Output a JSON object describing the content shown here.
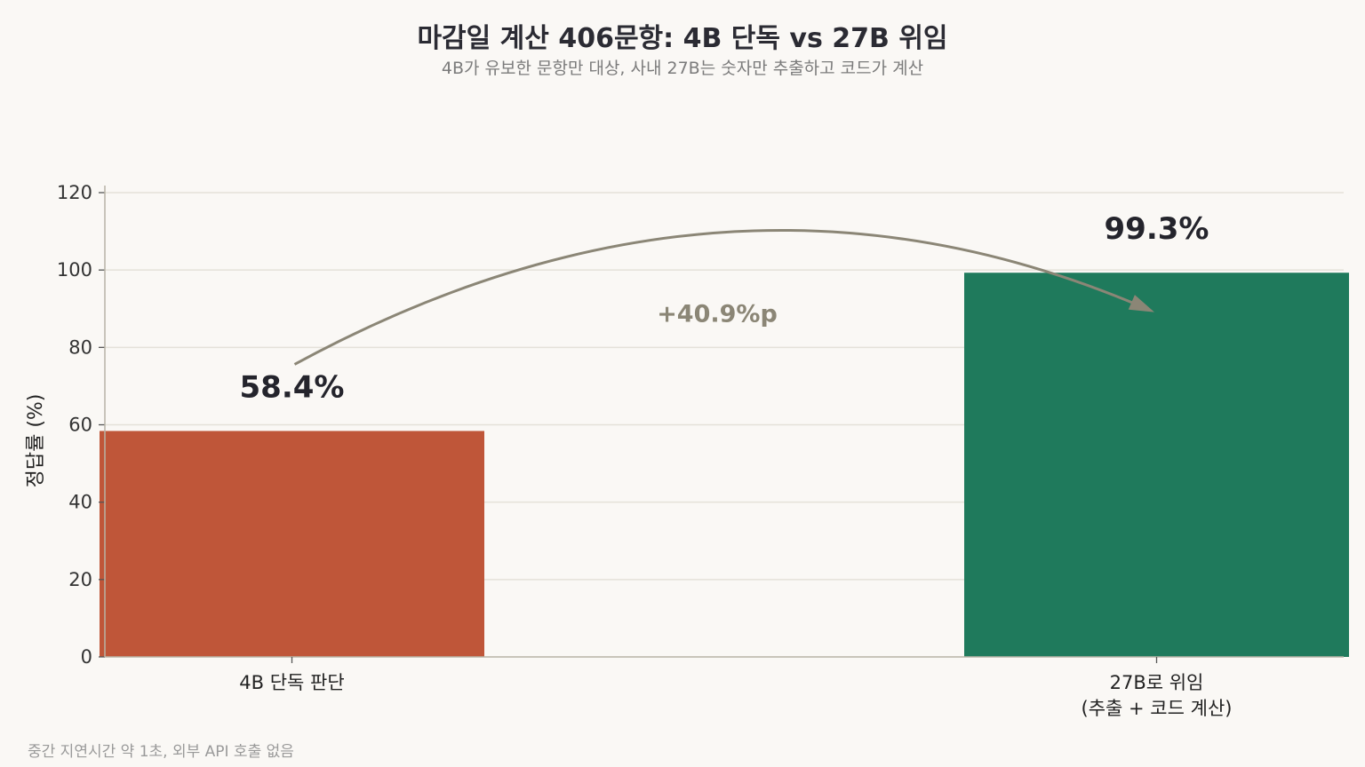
{
  "chart_data": {
    "type": "bar",
    "title": "마감일 계산 406문항: 4B 단독 vs 27B 위임",
    "subtitle": "4B가 유보한 문항만 대상, 사내 27B는 숫자만 추출하고 코드가 계산",
    "ylabel": "정답률 (%)",
    "xlabel": "",
    "ylim": [
      0,
      120
    ],
    "yticks": [
      0,
      20,
      40,
      60,
      80,
      100,
      120
    ],
    "grid": true,
    "categories": [
      [
        "4B 단독 판단"
      ],
      [
        "27B로 위임",
        "(추출 + 코드 계산)"
      ]
    ],
    "values": [
      58.4,
      99.3
    ],
    "value_labels": [
      "58.4%",
      "99.3%"
    ],
    "colors": [
      "#bf5639",
      "#1f7a5c"
    ],
    "annotation": {
      "text": "+40.9%p",
      "from": 0,
      "to": 1,
      "color": "#8b8676"
    },
    "footnote": "중간 지연시간 약 1초, 외부 API 호출 없음"
  }
}
